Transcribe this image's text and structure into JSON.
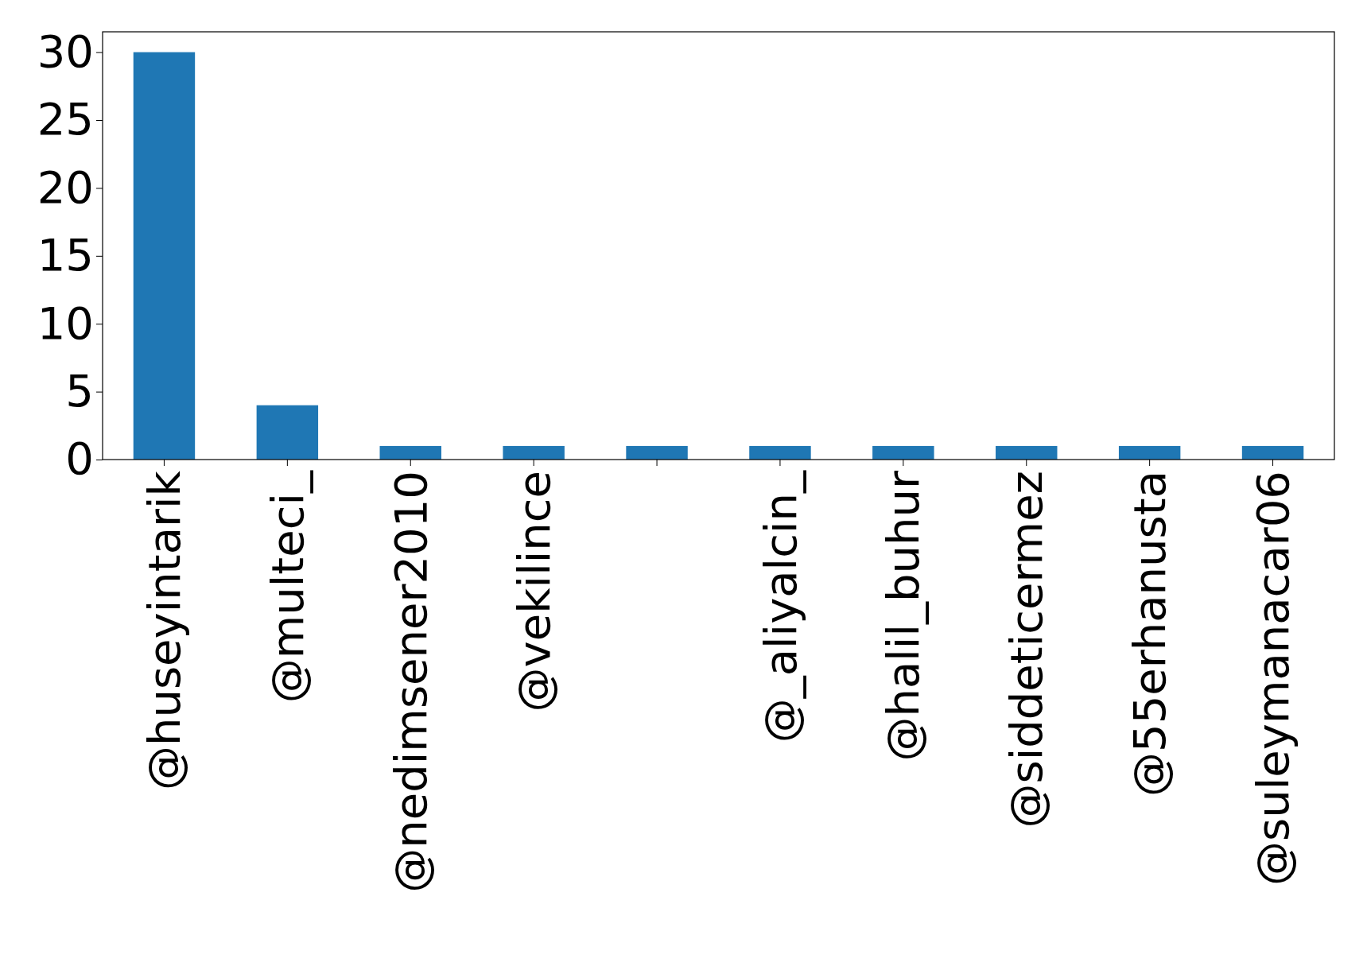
{
  "chart_data": {
    "type": "bar",
    "categories": [
      "@huseyintarik",
      "@multeci_",
      "@nedimsener2010",
      "@vekilince",
      null,
      "@_aliyalcin_",
      "@halil_buhur",
      "@siddeticermez",
      "@55erhanusta",
      "@suleymanacar06"
    ],
    "values": [
      30,
      4,
      1,
      1,
      1,
      1,
      1,
      1,
      1,
      1
    ],
    "color": "#1f77b4",
    "ylim": [
      0,
      31.5
    ],
    "yticks": [
      0,
      5,
      10,
      15,
      20,
      25,
      30
    ],
    "grid": false
  }
}
